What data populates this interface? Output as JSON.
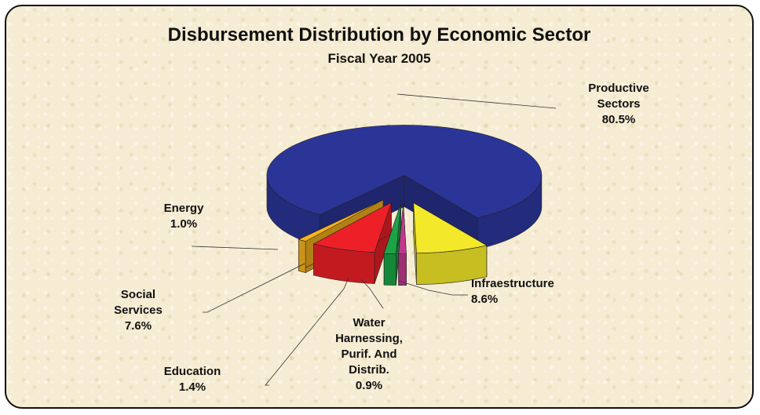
{
  "chart_data": {
    "type": "pie",
    "style": "3d-exploded",
    "title": "Disbursement Distribution by Economic Sector",
    "subtitle": "Fiscal Year 2005",
    "slices": [
      {
        "name_lines": [
          "Productive",
          "Sectors"
        ],
        "label": "Productive Sectors",
        "value": 80.5,
        "value_label": "80.5%",
        "color": "#2b3597"
      },
      {
        "name_lines": [
          "Infraestructure"
        ],
        "label": "Infraestructure",
        "value": 8.6,
        "value_label": "8.6%",
        "color": "#f3e829"
      },
      {
        "name_lines": [
          "Water",
          "Harnessing,",
          "Purif. And",
          "Distrib."
        ],
        "label": "Water Harnessing, Purif. And Distrib.",
        "value": 0.9,
        "value_label": "0.9%",
        "color": "#c2388e"
      },
      {
        "name_lines": [
          "Education"
        ],
        "label": "Education",
        "value": 1.4,
        "value_label": "1.4%",
        "color": "#1ba346"
      },
      {
        "name_lines": [
          "Social",
          "Services"
        ],
        "label": "Social Services",
        "value": 7.6,
        "value_label": "7.6%",
        "color": "#ee2027"
      },
      {
        "name_lines": [
          "Energy"
        ],
        "label": "Energy",
        "value": 1.0,
        "value_label": "1.0%",
        "color": "#f7b31c"
      }
    ]
  }
}
